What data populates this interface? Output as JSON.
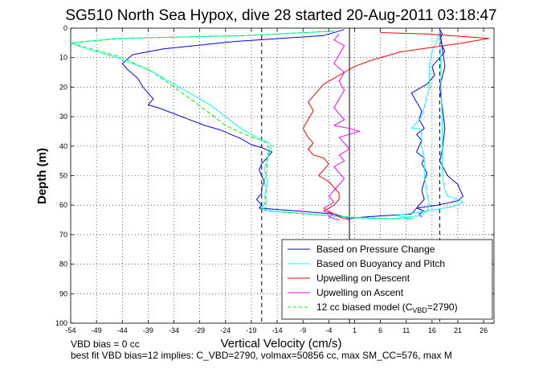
{
  "chart_data": {
    "type": "line",
    "title": "SG510 North Sea Hypox, dive 28 started 20-Aug-2011 03:18:47",
    "xlabel": "Vertical Velocity (cm/s)",
    "ylabel": "Depth (m)",
    "xlim": [
      -54,
      28
    ],
    "ylim": [
      100,
      0
    ],
    "y_reversed": true,
    "grid": true,
    "legend_position": "bottom-right",
    "xticks": [
      -54,
      -49,
      -44,
      -39,
      -34,
      -29,
      -24,
      -19,
      -14,
      -9,
      -4,
      1,
      6,
      11,
      16,
      21,
      26
    ],
    "yticks": [
      0,
      10,
      20,
      30,
      40,
      50,
      60,
      70,
      80,
      90,
      100
    ],
    "vlines": [
      {
        "x": -17,
        "style": "dashed",
        "color": "#000000"
      },
      {
        "x": 0,
        "style": "solid",
        "color": "#000000"
      },
      {
        "x": 17.5,
        "style": "dashed",
        "color": "#000000"
      }
    ],
    "series": [
      {
        "name": "Based on Pressure Change",
        "color": "#0000ff",
        "style": "solid",
        "x": [
          -1,
          -5,
          -22,
          -36,
          -42,
          -44,
          -43,
          -41,
          -40,
          -38,
          -39,
          -37,
          -34,
          -31,
          -28,
          -25,
          -23,
          -21,
          -19,
          -17,
          -15,
          -16,
          -17,
          -17.5,
          -17,
          -16.5,
          -17,
          -17,
          -18,
          -17,
          -17.5,
          -10,
          -3,
          -1,
          0,
          3,
          12,
          13,
          14.5,
          14,
          14.5,
          15,
          14,
          14.5,
          13,
          13.5,
          14,
          13,
          14.5,
          13.5,
          14,
          13,
          12,
          15,
          16.5,
          16,
          17.5,
          18.5,
          18,
          17.5,
          18,
          17.5,
          18.5,
          17.5,
          18,
          18.5,
          18,
          17.5,
          19,
          21,
          22,
          21,
          17,
          13,
          14.5,
          13.5,
          14
        ],
        "y": [
          0.5,
          2.5,
          4.5,
          7,
          9,
          12,
          14,
          17,
          20,
          24,
          26,
          27,
          29,
          31,
          33,
          34.5,
          36,
          37.5,
          39.5,
          40.5,
          42,
          44,
          46,
          48,
          50,
          52,
          54,
          56,
          58,
          60,
          61,
          62,
          63,
          64,
          64.5,
          64,
          63,
          61,
          58,
          55,
          52,
          49,
          46,
          44,
          42,
          40,
          38,
          36,
          34,
          31,
          28,
          25,
          22,
          19,
          16,
          13,
          10,
          8,
          6,
          4,
          2,
          0.5,
          13,
          20,
          27,
          34,
          41,
          45,
          50,
          53,
          57,
          58.5,
          60,
          61,
          62,
          63,
          64
        ]
      },
      {
        "name": "Based on Buoyancy and Pitch",
        "color": "#00ffff",
        "style": "solid",
        "x": [
          -3,
          -20,
          -45,
          -54,
          -51,
          -45,
          -39,
          -35,
          -31,
          -27,
          -24,
          -21,
          -18,
          -16,
          -15,
          -15.5,
          -16,
          -16.5,
          -16,
          -16,
          -16.5,
          -16,
          -17,
          -16.5,
          -15,
          -8,
          -1,
          3,
          9,
          14,
          15,
          15.5,
          15,
          14.5,
          14.5,
          14,
          14,
          13.5,
          12,
          14,
          15.5,
          15.5,
          16,
          17,
          17.5,
          18,
          18,
          18,
          18,
          18.5,
          19,
          21,
          22,
          20,
          15,
          9,
          12,
          11
        ],
        "y": [
          1,
          2.5,
          3.5,
          5,
          7,
          10,
          14,
          18,
          22,
          26,
          30,
          34,
          37,
          38.5,
          40,
          42,
          45,
          48,
          51,
          54,
          57,
          59,
          60.5,
          61.5,
          62,
          63,
          64,
          64.5,
          64.5,
          63.5,
          62,
          60,
          56,
          50,
          45,
          40,
          36,
          34,
          34,
          30,
          20,
          12,
          8,
          4,
          1,
          35,
          40,
          45,
          50,
          55,
          57,
          58,
          59,
          60.5,
          62,
          63.5,
          64.5,
          65
        ]
      },
      {
        "name": "Upwelling on Descent",
        "color": "#ff0000",
        "style": "solid",
        "x": [
          6,
          15,
          27,
          22,
          10,
          4,
          1,
          -1,
          -3,
          -5,
          -6,
          -7,
          -8,
          -7,
          -8,
          -9,
          -8,
          -7,
          -8,
          -7,
          -5,
          -4,
          -5,
          -6,
          -4,
          -3,
          -2,
          -2,
          -3,
          -4,
          -5,
          -3,
          -2,
          -1,
          0
        ],
        "y": [
          1.5,
          2,
          3.5,
          5,
          8,
          11,
          13,
          15,
          17,
          19,
          21,
          23,
          25,
          28,
          31,
          34,
          37,
          39,
          41,
          43,
          44,
          46,
          48,
          50,
          52,
          54,
          56,
          58,
          60,
          61,
          62,
          63,
          64,
          64.5,
          65
        ]
      },
      {
        "name": "Upwelling on Ascent",
        "color": "#ff00ff",
        "style": "solid",
        "x": [
          -2,
          -3,
          -1,
          -2,
          -3,
          -1,
          -2,
          -1,
          -2,
          -3,
          -2,
          -1,
          -3,
          0,
          2,
          -2,
          -1,
          0,
          -2,
          -1,
          -3,
          -2,
          -1,
          -2,
          -3,
          -4,
          -3,
          -5,
          -4,
          -3,
          -4,
          -3,
          -2
        ],
        "y": [
          2,
          4,
          6,
          9,
          12,
          15,
          18,
          21,
          24,
          27,
          29,
          31,
          33,
          34,
          35,
          37,
          39,
          41,
          43,
          45,
          47,
          49,
          51,
          53,
          55,
          57,
          59,
          61,
          62,
          63,
          64,
          64.5,
          65
        ]
      },
      {
        "name": "12 cc biased model (C_VBD=2790)",
        "color": "#00ff00",
        "style": "dashed",
        "x": [
          -3,
          -20,
          -44,
          -54,
          -50,
          -44,
          -38,
          -34,
          -30,
          -27,
          -24,
          -21,
          -18,
          -16,
          -15.5,
          -16,
          -16,
          -16.5,
          -16,
          -16.5,
          -16,
          -17,
          -16,
          -8,
          0,
          6,
          13
        ],
        "y": [
          1,
          2.5,
          3.5,
          5,
          7,
          10,
          15,
          20,
          25,
          29,
          33,
          35.5,
          37.5,
          39,
          41,
          44,
          48,
          52,
          56,
          59,
          60.5,
          61.5,
          62,
          63,
          64,
          64.5,
          64.5
        ]
      }
    ],
    "legend": {
      "entries": [
        {
          "label": "Based on Pressure Change",
          "color": "#0000ff",
          "style": "solid"
        },
        {
          "label": "Based on Buoyancy and Pitch",
          "color": "#00ffff",
          "style": "solid"
        },
        {
          "label": "Upwelling on Descent",
          "color": "#ff0000",
          "style": "solid"
        },
        {
          "label": "Upwelling on Ascent",
          "color": "#ff00ff",
          "style": "solid"
        },
        {
          "label": "12 cc biased model (C",
          "sub": "VBD",
          "suffix": "=2790)",
          "color": "#00ff00",
          "style": "dashed"
        }
      ]
    },
    "annotations": [
      "VBD bias = 0 cc",
      "best fit VBD bias=12 implies: C_VBD=2790, volmax=50856 cc, max SM_CC=576, max M"
    ]
  }
}
